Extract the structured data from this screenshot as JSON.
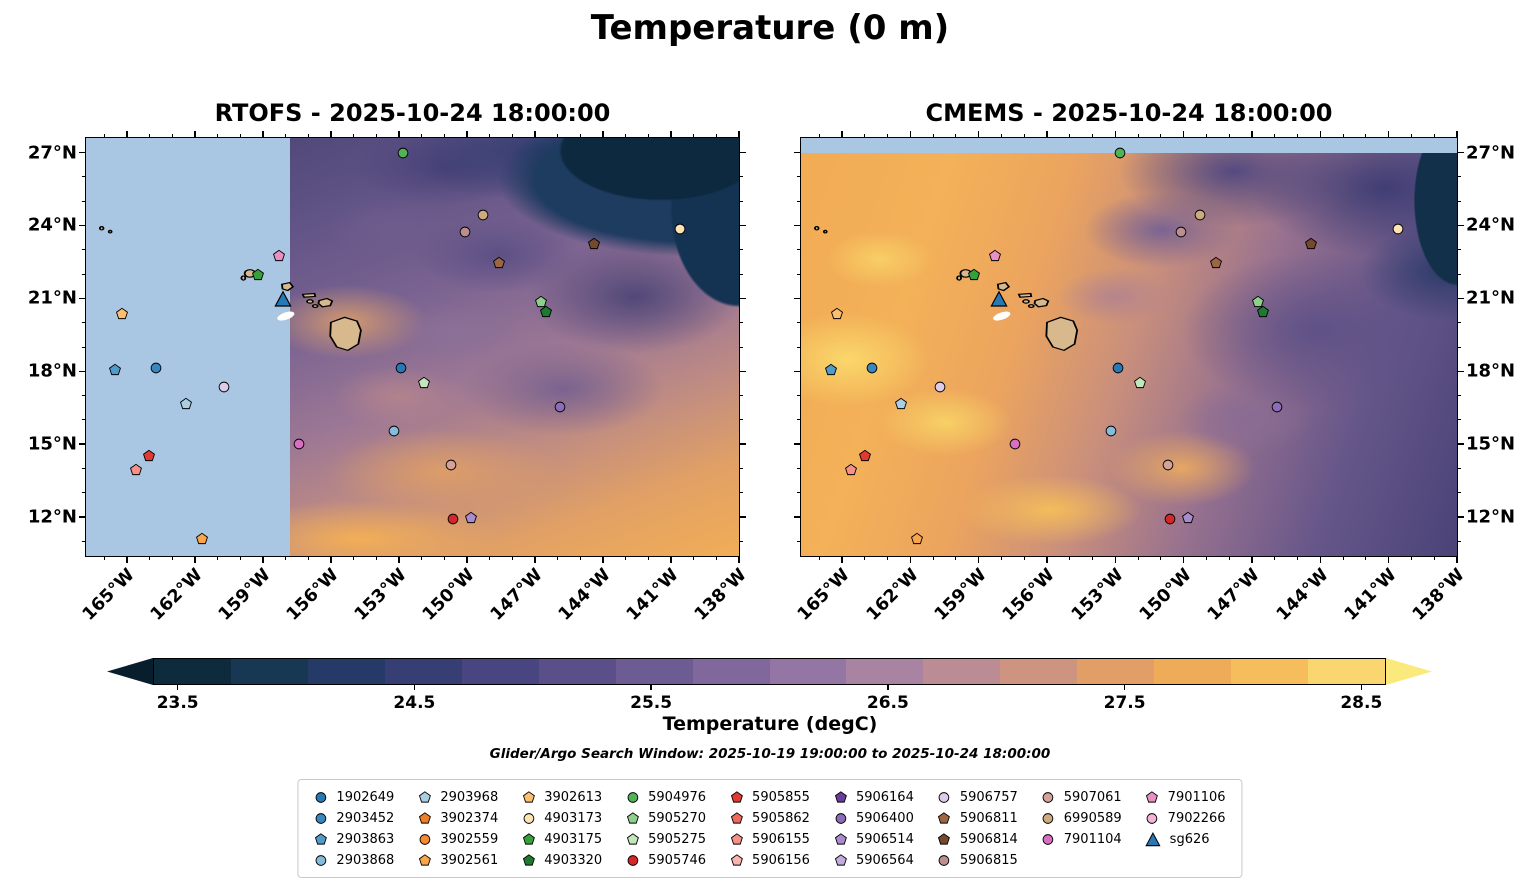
{
  "figure": {
    "title": "Temperature (0 m)",
    "subtitle": "Glider/Argo Search Window: 2025-10-19 19:00:00 to 2025-10-24 18:00:00"
  },
  "chart_data": {
    "type": "heatmap",
    "title": "Temperature (0 m)",
    "panels": [
      {
        "name": "RTOFS",
        "title": "RTOFS - 2025-10-24 18:00:00"
      },
      {
        "name": "CMEMS",
        "title": "CMEMS - 2025-10-24 18:00:00"
      }
    ],
    "extent": {
      "lon_min": -166.8,
      "lon_max": -138.0,
      "lat_min": 10.4,
      "lat_max": 27.6
    },
    "lon_ticks": [
      {
        "value": -165,
        "label": "165°W"
      },
      {
        "value": -162,
        "label": "162°W"
      },
      {
        "value": -159,
        "label": "159°W"
      },
      {
        "value": -156,
        "label": "156°W"
      },
      {
        "value": -153,
        "label": "153°W"
      },
      {
        "value": -150,
        "label": "150°W"
      },
      {
        "value": -147,
        "label": "147°W"
      },
      {
        "value": -144,
        "label": "144°W"
      },
      {
        "value": -141,
        "label": "141°W"
      },
      {
        "value": -138,
        "label": "138°W"
      }
    ],
    "lat_ticks": [
      {
        "value": 27,
        "label": "27°N"
      },
      {
        "value": 24,
        "label": "24°N"
      },
      {
        "value": 21,
        "label": "21°N"
      },
      {
        "value": 18,
        "label": "18°N"
      },
      {
        "value": 15,
        "label": "15°N"
      },
      {
        "value": 12,
        "label": "12°N"
      }
    ],
    "colorbar": {
      "label": "Temperature (degC)",
      "min": 23.4,
      "max": 28.6,
      "ticks": [
        {
          "value": 23.5,
          "label": "23.5"
        },
        {
          "value": 24.5,
          "label": "24.5"
        },
        {
          "value": 25.5,
          "label": "25.5"
        },
        {
          "value": 26.5,
          "label": "26.5"
        },
        {
          "value": 27.5,
          "label": "27.5"
        },
        {
          "value": 28.5,
          "label": "28.5"
        }
      ],
      "band_colors": [
        "#0d2b3d",
        "#173753",
        "#253a66",
        "#363e73",
        "#484580",
        "#5a4f89",
        "#6d5b93",
        "#80689c",
        "#9376a3",
        "#a883a2",
        "#bb8c94",
        "#cf9480",
        "#e19e67",
        "#eeab58",
        "#f6bd5c",
        "#fad671"
      ],
      "under_color": "#091e2d",
      "over_color": "#fce97c"
    },
    "colors": {
      "masked_no_data": "#a9c6e3",
      "land": "#d8b98e"
    },
    "legend_columns": [
      [
        {
          "id": "1902649",
          "shape": "circle",
          "color": "#2878b5"
        },
        {
          "id": "2903452",
          "shape": "circle",
          "color": "#3a87bf"
        },
        {
          "id": "2903863",
          "shape": "pentagon",
          "color": "#4f9bcb"
        },
        {
          "id": "2903868",
          "shape": "circle",
          "color": "#85bcdb"
        }
      ],
      [
        {
          "id": "2903968",
          "shape": "pentagon",
          "color": "#aacfe5"
        },
        {
          "id": "3902374",
          "shape": "pentagon",
          "color": "#f07e26"
        },
        {
          "id": "3902559",
          "shape": "circle",
          "color": "#f58a2e"
        },
        {
          "id": "3902561",
          "shape": "pentagon",
          "color": "#faa54a"
        }
      ],
      [
        {
          "id": "3902613",
          "shape": "pentagon",
          "color": "#fdbf6f"
        },
        {
          "id": "4903173",
          "shape": "circle",
          "color": "#fee3b4"
        },
        {
          "id": "4903175",
          "shape": "pentagon",
          "color": "#35a13a"
        },
        {
          "id": "4903320",
          "shape": "pentagon",
          "color": "#1e7a2e"
        }
      ],
      [
        {
          "id": "5904976",
          "shape": "circle",
          "color": "#52b356"
        },
        {
          "id": "5905270",
          "shape": "pentagon",
          "color": "#8ed08b"
        },
        {
          "id": "5905275",
          "shape": "pentagon",
          "color": "#c3e6bc"
        },
        {
          "id": "5905746",
          "shape": "circle",
          "color": "#d62728"
        }
      ],
      [
        {
          "id": "5905855",
          "shape": "pentagon",
          "color": "#e03a33"
        },
        {
          "id": "5905862",
          "shape": "pentagon",
          "color": "#ef6a5e"
        },
        {
          "id": "5906155",
          "shape": "pentagon",
          "color": "#f59188"
        },
        {
          "id": "5906156",
          "shape": "pentagon",
          "color": "#fab3ad"
        }
      ],
      [
        {
          "id": "5906164",
          "shape": "pentagon",
          "color": "#6a3d9a"
        },
        {
          "id": "5906400",
          "shape": "circle",
          "color": "#8c6bb8"
        },
        {
          "id": "5906514",
          "shape": "pentagon",
          "color": "#a88cce"
        },
        {
          "id": "5906564",
          "shape": "pentagon",
          "color": "#c4addd"
        }
      ],
      [
        {
          "id": "5906757",
          "shape": "circle",
          "color": "#ddcbea"
        },
        {
          "id": "5906811",
          "shape": "pentagon",
          "color": "#9c6644"
        },
        {
          "id": "5906814",
          "shape": "pentagon",
          "color": "#74492d"
        },
        {
          "id": "5906815",
          "shape": "circle",
          "color": "#bc8f8f"
        }
      ],
      [
        {
          "id": "5907061",
          "shape": "circle",
          "color": "#d3a29a"
        },
        {
          "id": "6990589",
          "shape": "circle",
          "color": "#cdab7e"
        },
        {
          "id": "7901104",
          "shape": "circle",
          "color": "#d96fc0"
        }
      ],
      [
        {
          "id": "7901106",
          "shape": "pentagon",
          "color": "#e98fc4"
        },
        {
          "id": "7902266",
          "shape": "circle",
          "color": "#f2b3d5"
        },
        {
          "id": "sg626",
          "shape": "triangle",
          "color": "#2878b5"
        }
      ]
    ],
    "markers": [
      {
        "id": "5904976",
        "lon": -152.8,
        "lat": 26.98
      },
      {
        "id": "6990589",
        "lon": -149.3,
        "lat": 24.43
      },
      {
        "id": "5906815",
        "lon": -150.1,
        "lat": 23.73
      },
      {
        "id": "4903173",
        "lon": -140.6,
        "lat": 23.85
      },
      {
        "id": "5906814",
        "lon": -144.4,
        "lat": 23.24
      },
      {
        "id": "5906811",
        "lon": -148.6,
        "lat": 22.46
      },
      {
        "id": "7901106",
        "lon": -158.3,
        "lat": 22.74
      },
      {
        "id": "4903175",
        "lon": -159.2,
        "lat": 21.96
      },
      {
        "id": "5905270",
        "lon": -146.75,
        "lat": 20.85
      },
      {
        "id": "4903320",
        "lon": -146.5,
        "lat": 20.44
      },
      {
        "id": "sg626",
        "lon": -158.1,
        "lat": 20.98
      },
      {
        "id": "3902613",
        "lon": -165.2,
        "lat": 20.36
      },
      {
        "id": "2903863",
        "lon": -165.5,
        "lat": 18.05
      },
      {
        "id": "2903452",
        "lon": -163.7,
        "lat": 18.14
      },
      {
        "id": "1902649",
        "lon": -152.9,
        "lat": 18.14
      },
      {
        "id": "5905275",
        "lon": -151.9,
        "lat": 17.52
      },
      {
        "id": "5906757",
        "lon": -160.7,
        "lat": 17.35
      },
      {
        "id": "2903968",
        "lon": -162.4,
        "lat": 16.66
      },
      {
        "id": "5906400",
        "lon": -145.9,
        "lat": 16.52
      },
      {
        "id": "2903868",
        "lon": -153.2,
        "lat": 15.54
      },
      {
        "id": "7901104",
        "lon": -157.4,
        "lat": 15.01
      },
      {
        "id": "5905855",
        "lon": -164.0,
        "lat": 14.51
      },
      {
        "id": "5906155",
        "lon": -164.6,
        "lat": 13.94
      },
      {
        "id": "5907061",
        "lon": -150.7,
        "lat": 14.15
      },
      {
        "id": "5905746",
        "lon": -150.6,
        "lat": 11.93
      },
      {
        "id": "5906514",
        "lon": -149.8,
        "lat": 11.95
      },
      {
        "id": "3902561",
        "lon": -161.7,
        "lat": 11.1
      }
    ]
  }
}
